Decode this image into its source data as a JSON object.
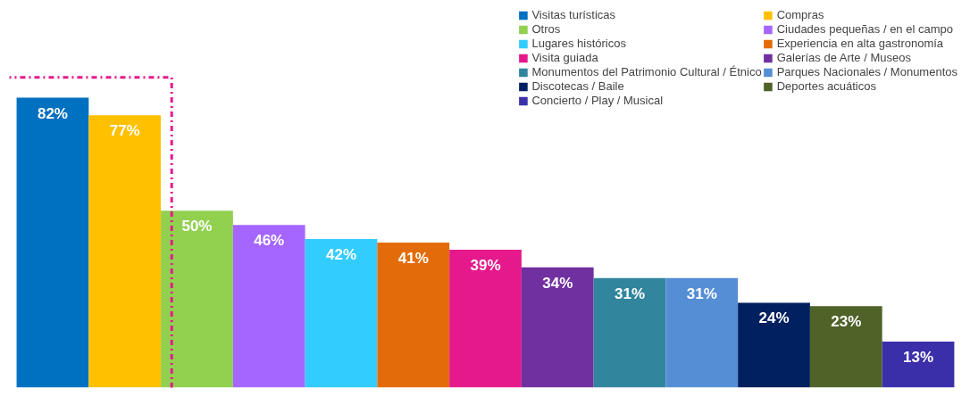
{
  "chart_data": {
    "type": "bar",
    "stacked": true,
    "categories": [
      null,
      null,
      null,
      null,
      null,
      null,
      null,
      null,
      null,
      null,
      null,
      null,
      null
    ],
    "series": [
      {
        "name": "Visitas turísticas",
        "color": "#0070c0",
        "values": [
          82,
          0,
          0,
          0,
          0,
          0,
          0,
          0,
          0,
          0,
          0,
          0,
          0
        ],
        "value_labels": [
          "82%",
          null,
          null,
          null,
          null,
          null,
          null,
          null,
          null,
          null,
          null,
          null,
          null
        ]
      },
      {
        "name": "Compras",
        "color": "#ffc000",
        "values": [
          0,
          77,
          0,
          0,
          0,
          0,
          0,
          0,
          0,
          0,
          0,
          0,
          0
        ],
        "value_labels": [
          null,
          "77%",
          null,
          null,
          null,
          null,
          null,
          null,
          null,
          null,
          null,
          null,
          null
        ]
      },
      {
        "name": "Otros",
        "color": "#92d050",
        "values": [
          0,
          0,
          50,
          0,
          0,
          0,
          0,
          0,
          0,
          0,
          0,
          0,
          0
        ],
        "value_labels": [
          null,
          null,
          "50%",
          null,
          null,
          null,
          null,
          null,
          null,
          null,
          null,
          null,
          null
        ]
      },
      {
        "name": "Ciudades pequeñas / en el campo",
        "color": "#a566ff",
        "values": [
          0,
          0,
          0,
          46,
          0,
          0,
          0,
          0,
          0,
          0,
          0,
          0,
          0
        ],
        "value_labels": [
          null,
          null,
          null,
          "46%",
          null,
          null,
          null,
          null,
          null,
          null,
          null,
          null,
          null
        ]
      },
      {
        "name": "Lugares históricos",
        "color": "#33ccff",
        "values": [
          0,
          0,
          0,
          0,
          42,
          0,
          0,
          0,
          0,
          0,
          0,
          0,
          0
        ],
        "value_labels": [
          null,
          null,
          null,
          null,
          "42%",
          null,
          null,
          null,
          null,
          null,
          null,
          null,
          null
        ]
      },
      {
        "name": "Experiencia en alta gastronomía",
        "color": "#e36c0a",
        "values": [
          0,
          0,
          0,
          0,
          0,
          41,
          0,
          0,
          0,
          0,
          0,
          0,
          0
        ],
        "value_labels": [
          null,
          null,
          null,
          null,
          null,
          "41%",
          null,
          null,
          null,
          null,
          null,
          null,
          null
        ]
      },
      {
        "name": "Visita guiada",
        "color": "#e6198c",
        "values": [
          0,
          0,
          0,
          0,
          0,
          0,
          39,
          0,
          0,
          0,
          0,
          0,
          0
        ],
        "value_labels": [
          null,
          null,
          null,
          null,
          null,
          null,
          "39%",
          null,
          null,
          null,
          null,
          null,
          null
        ]
      },
      {
        "name": "Galerías de Arte / Museos",
        "color": "#7030a0",
        "values": [
          0,
          0,
          0,
          0,
          0,
          0,
          0,
          34,
          0,
          0,
          0,
          0,
          0
        ],
        "value_labels": [
          null,
          null,
          null,
          null,
          null,
          null,
          null,
          "34%",
          null,
          null,
          null,
          null,
          null
        ]
      },
      {
        "name": "Monumentos del Patrimonio Cultural / Étnico",
        "color": "#31859c",
        "values": [
          0,
          0,
          0,
          0,
          0,
          0,
          0,
          0,
          31,
          0,
          0,
          0,
          0
        ],
        "value_labels": [
          null,
          null,
          null,
          null,
          null,
          null,
          null,
          null,
          "31%",
          null,
          null,
          null,
          null
        ]
      },
      {
        "name": "Parques Nacionales / Monumentos",
        "color": "#558ed5",
        "values": [
          0,
          0,
          0,
          0,
          0,
          0,
          0,
          0,
          0,
          31,
          0,
          0,
          0
        ],
        "value_labels": [
          null,
          null,
          null,
          null,
          null,
          null,
          null,
          null,
          null,
          "31%",
          null,
          null,
          null
        ]
      },
      {
        "name": "Discotecas / Baile",
        "color": "#002060",
        "values": [
          0,
          0,
          0,
          0,
          0,
          0,
          0,
          0,
          0,
          0,
          24,
          0,
          0
        ],
        "value_labels": [
          null,
          null,
          null,
          null,
          null,
          null,
          null,
          null,
          null,
          null,
          "24%",
          null,
          null
        ]
      },
      {
        "name": "Deportes acuáticos",
        "color": "#4f6228",
        "values": [
          0,
          0,
          0,
          0,
          0,
          0,
          0,
          0,
          0,
          0,
          0,
          23,
          0
        ],
        "value_labels": [
          null,
          null,
          null,
          null,
          null,
          null,
          null,
          null,
          null,
          null,
          null,
          "23%",
          null
        ]
      },
      {
        "name": "Concierto / Play / Musical",
        "color": "#3a2fa8",
        "values": [
          0,
          0,
          0,
          0,
          0,
          0,
          0,
          0,
          0,
          0,
          0,
          0,
          13
        ],
        "value_labels": [
          null,
          null,
          null,
          null,
          null,
          null,
          null,
          null,
          null,
          null,
          null,
          null,
          "13%"
        ]
      }
    ],
    "legend": "top right",
    "grid": false
  }
}
